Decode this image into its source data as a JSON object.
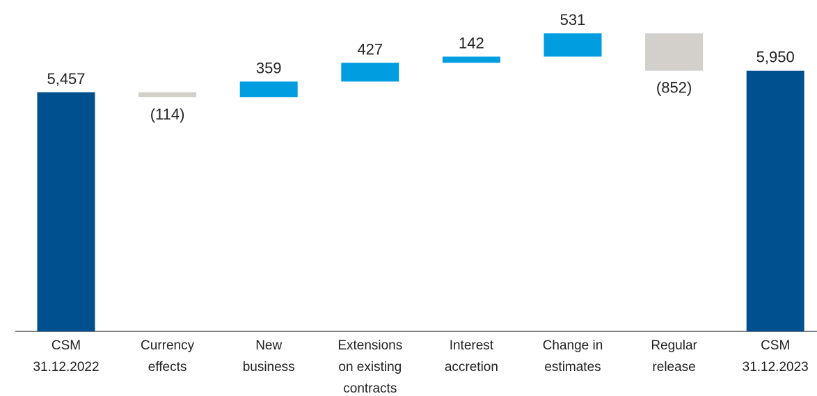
{
  "chart_data": {
    "type": "waterfall",
    "categories": [
      [
        "CSM",
        "31.12.2022"
      ],
      [
        "Currency",
        "effects"
      ],
      [
        "New",
        "business"
      ],
      [
        "Extensions",
        "on existing",
        "contracts"
      ],
      [
        "Interest",
        "accretion"
      ],
      [
        "Change in",
        "estimates"
      ],
      [
        "Regular",
        "release"
      ],
      [
        "CSM",
        "31.12.2023"
      ]
    ],
    "values": [
      5457,
      -114,
      359,
      427,
      142,
      531,
      -852,
      5950
    ],
    "value_labels": [
      "5,457",
      "(114)",
      "359",
      "427",
      "142",
      "531",
      "(852)",
      "5,950"
    ],
    "totals": [
      true,
      false,
      false,
      false,
      false,
      false,
      false,
      true
    ],
    "colors": {
      "total": "#00508f",
      "increase": "#009ee0",
      "decrease": "#d3d0cb"
    }
  }
}
